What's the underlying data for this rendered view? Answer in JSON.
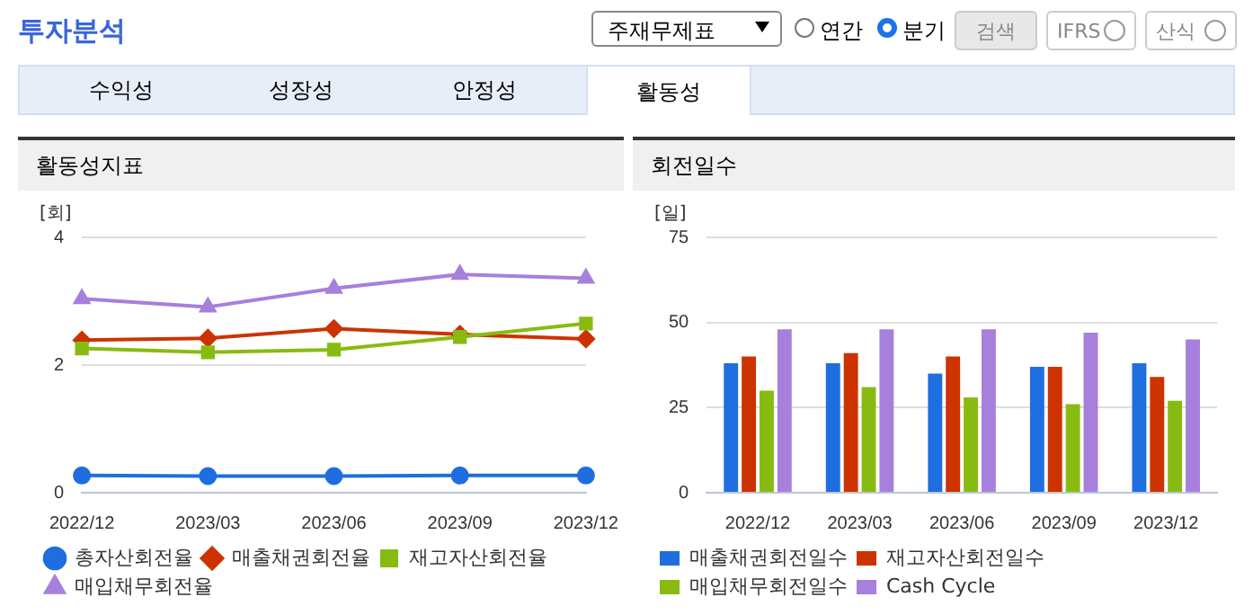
{
  "chart_data": [
    {
      "type": "other",
      "title": "투자분석",
      "annotations": [
        "주재무제표",
        "연간",
        "분기",
        "검색",
        "IFRS",
        "산식",
        "수익성",
        "성장성",
        "안정성",
        "활동성"
      ]
    },
    {
      "type": "line",
      "title": "활동성지표",
      "ylabel": "[회]",
      "categories": [
        "2022/12",
        "2023/03",
        "2023/06",
        "2023/09",
        "2023/12"
      ],
      "ylim": [
        0,
        4
      ],
      "yticks": [
        0,
        2,
        4
      ],
      "grid": "y",
      "legend": "bottom",
      "series": [
        {
          "name": "총자산회전율",
          "color": "#1f6ee0",
          "marker": "circle",
          "values": [
            0.27,
            0.26,
            0.26,
            0.27,
            0.27
          ]
        },
        {
          "name": "매출채권회전율",
          "color": "#cc3300",
          "marker": "diamond",
          "values": [
            2.39,
            2.42,
            2.57,
            2.48,
            2.41
          ]
        },
        {
          "name": "재고자산회전율",
          "color": "#88bb11",
          "marker": "square",
          "values": [
            2.26,
            2.2,
            2.24,
            2.44,
            2.65
          ]
        },
        {
          "name": "매입채무회전율",
          "color": "#a77fdc",
          "marker": "triangle",
          "values": [
            3.04,
            2.91,
            3.2,
            3.42,
            3.36
          ]
        }
      ]
    },
    {
      "type": "bar",
      "title": "회전일수",
      "ylabel": "[일]",
      "categories": [
        "2022/12",
        "2023/03",
        "2023/06",
        "2023/09",
        "2023/12"
      ],
      "ylim": [
        0,
        75
      ],
      "yticks": [
        0,
        25,
        50,
        75
      ],
      "grid": "y",
      "legend": "bottom",
      "series": [
        {
          "name": "매출채권회전일수",
          "color": "#1f6ee0",
          "values": [
            38,
            38,
            35,
            37,
            38
          ]
        },
        {
          "name": "재고자산회전일수",
          "color": "#cc3300",
          "values": [
            40,
            41,
            40,
            37,
            34
          ]
        },
        {
          "name": "매입채무회전일수",
          "color": "#88bb11",
          "values": [
            30,
            31,
            28,
            26,
            27
          ]
        },
        {
          "name": "Cash Cycle",
          "color": "#a77fdc",
          "values": [
            48,
            48,
            48,
            47,
            45
          ]
        }
      ]
    }
  ]
}
